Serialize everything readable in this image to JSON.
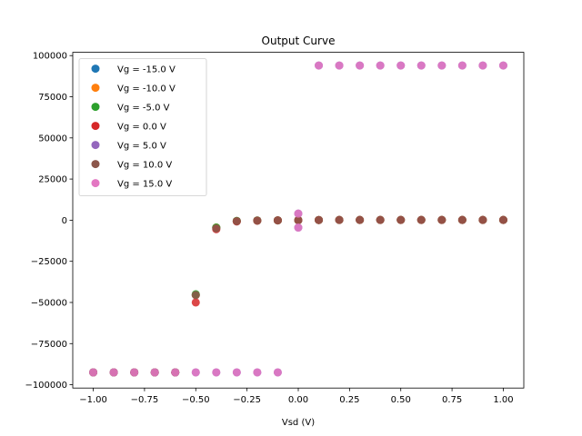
{
  "chart_data": {
    "type": "scatter",
    "title": "Output Curve",
    "xlabel": "Vsd (V)",
    "ylabel": "",
    "xlim": [
      -1.1,
      1.1
    ],
    "ylim": [
      -102000,
      102000
    ],
    "xticks": [
      -1.0,
      -0.75,
      -0.5,
      -0.25,
      0.0,
      0.25,
      0.5,
      0.75,
      1.0
    ],
    "xtick_labels": [
      "−1.00",
      "−0.75",
      "−0.50",
      "−0.25",
      "0.00",
      "0.25",
      "0.50",
      "0.75",
      "1.00"
    ],
    "yticks": [
      -100000,
      -75000,
      -50000,
      -25000,
      0,
      25000,
      50000,
      75000,
      100000
    ],
    "ytick_labels": [
      "−100000",
      "−75000",
      "−50000",
      "−25000",
      "0",
      "25000",
      "50000",
      "75000",
      "100000"
    ],
    "grid": false,
    "legend_position": "top-left",
    "series": [
      {
        "name": "Vg = -15.0 V",
        "color": "#1f77b4",
        "x": [
          -1.0,
          -0.9,
          -0.8,
          -0.7,
          -0.6,
          -0.5,
          -0.4,
          -0.3,
          -0.2,
          -0.1,
          0.0,
          0.1,
          0.2,
          0.3,
          0.4,
          0.5,
          0.6,
          0.7,
          0.8,
          0.9,
          1.0
        ],
        "y": [
          -92500,
          -92500,
          -92500,
          -92500,
          -92500,
          -45500,
          -4500,
          -500,
          -200,
          -100,
          0,
          100,
          150,
          150,
          150,
          150,
          150,
          150,
          150,
          150,
          150
        ]
      },
      {
        "name": "Vg = -10.0 V",
        "color": "#ff7f0e",
        "x": [
          -1.0,
          -0.9,
          -0.8,
          -0.7,
          -0.6,
          -0.5,
          -0.4,
          -0.3,
          -0.2,
          -0.1,
          0.0,
          0.1,
          0.2,
          0.3,
          0.4,
          0.5,
          0.6,
          0.7,
          0.8,
          0.9,
          1.0
        ],
        "y": [
          -92500,
          -92500,
          -92500,
          -92500,
          -92500,
          -45500,
          -4500,
          -500,
          -200,
          -100,
          0,
          100,
          150,
          150,
          150,
          150,
          150,
          150,
          150,
          150,
          150
        ]
      },
      {
        "name": "Vg = -5.0 V",
        "color": "#2ca02c",
        "x": [
          -1.0,
          -0.9,
          -0.8,
          -0.7,
          -0.6,
          -0.5,
          -0.4,
          -0.3,
          -0.2,
          -0.1,
          0.0,
          0.1,
          0.2,
          0.3,
          0.4,
          0.5,
          0.6,
          0.7,
          0.8,
          0.9,
          1.0
        ],
        "y": [
          -92500,
          -92500,
          -92500,
          -92500,
          -92500,
          -45000,
          -4500,
          -500,
          -200,
          -100,
          0,
          100,
          150,
          150,
          150,
          150,
          150,
          150,
          150,
          150,
          150
        ]
      },
      {
        "name": "Vg = 0.0 V",
        "color": "#d62728",
        "x": [
          -1.0,
          -0.9,
          -0.8,
          -0.7,
          -0.6,
          -0.5,
          -0.4,
          -0.3,
          -0.2,
          -0.1,
          0.0,
          0.1,
          0.2,
          0.3,
          0.4,
          0.5,
          0.6,
          0.7,
          0.8,
          0.9,
          1.0
        ],
        "y": [
          -92500,
          -92500,
          -92500,
          -92500,
          -92500,
          -50000,
          -5500,
          -800,
          -300,
          -100,
          0,
          100,
          150,
          150,
          150,
          150,
          150,
          150,
          150,
          150,
          150
        ]
      },
      {
        "name": "Vg = 5.0 V",
        "color": "#9467bd",
        "x": [
          -1.0,
          -0.9,
          -0.8,
          -0.7,
          -0.6,
          -0.5,
          -0.4,
          -0.3,
          -0.2,
          -0.1,
          0.0,
          0.0,
          0.1,
          0.2,
          0.3,
          0.4,
          0.5,
          0.6,
          0.7,
          0.8,
          0.9,
          1.0
        ],
        "y": [
          -92500,
          -92500,
          -92500,
          -92500,
          -92500,
          -92500,
          -92500,
          -92500,
          -92500,
          -92500,
          4000,
          -4500,
          94000,
          94000,
          94000,
          94000,
          94000,
          94000,
          94000,
          94000,
          94000,
          94000
        ]
      },
      {
        "name": "Vg = 10.0 V",
        "color": "#8c564b",
        "x": [
          -1.0,
          -0.9,
          -0.8,
          -0.7,
          -0.6,
          -0.5,
          -0.4,
          -0.3,
          -0.2,
          -0.1,
          0.0,
          0.1,
          0.2,
          0.3,
          0.4,
          0.5,
          0.6,
          0.7,
          0.8,
          0.9,
          1.0
        ],
        "y": [
          -92500,
          -92500,
          -92500,
          -92500,
          -92500,
          -45500,
          -5000,
          -600,
          -250,
          -100,
          0,
          100,
          150,
          150,
          150,
          150,
          150,
          150,
          150,
          150,
          150
        ]
      },
      {
        "name": "Vg = 15.0 V",
        "color": "#e377c2",
        "x": [
          -1.0,
          -0.9,
          -0.8,
          -0.7,
          -0.6,
          -0.5,
          -0.4,
          -0.3,
          -0.2,
          -0.1,
          0.0,
          0.0,
          0.1,
          0.2,
          0.3,
          0.4,
          0.5,
          0.6,
          0.7,
          0.8,
          0.9,
          1.0
        ],
        "y": [
          -92500,
          -92500,
          -92500,
          -92500,
          -92500,
          -92500,
          -92500,
          -92500,
          -92500,
          -92500,
          4000,
          -4500,
          94000,
          94000,
          94000,
          94000,
          94000,
          94000,
          94000,
          94000,
          94000,
          94000
        ]
      }
    ]
  }
}
